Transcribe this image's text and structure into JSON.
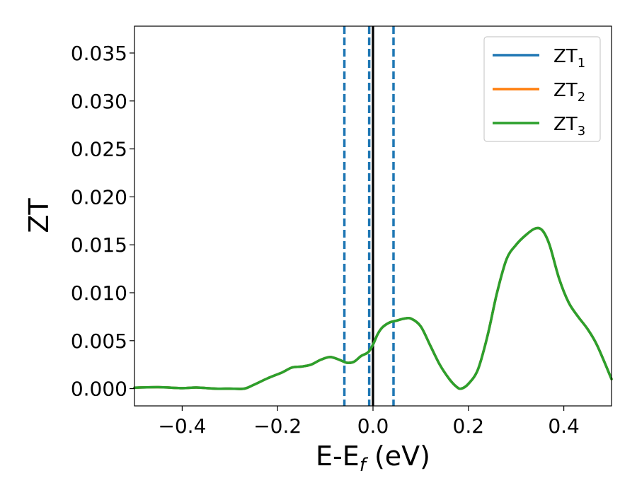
{
  "chart_data": {
    "type": "line",
    "xlabel_main": "E-E",
    "xlabel_sub": "f",
    "xlabel_unit": " (eV)",
    "ylabel": "ZT",
    "xlim": [
      -0.5,
      0.5
    ],
    "ylim": [
      -0.0018,
      0.0378
    ],
    "x_ticks": [
      -0.4,
      -0.2,
      0.0,
      0.2,
      0.4
    ],
    "x_tick_labels": [
      "−0.4",
      "−0.2",
      "0.0",
      "0.2",
      "0.4"
    ],
    "y_ticks": [
      0.0,
      0.005,
      0.01,
      0.015,
      0.02,
      0.025,
      0.03,
      0.035
    ],
    "y_tick_labels": [
      "0.000",
      "0.005",
      "0.010",
      "0.015",
      "0.020",
      "0.025",
      "0.030",
      "0.035"
    ],
    "grid": false,
    "legend_position": "top-right",
    "legend": [
      {
        "base": "ZT",
        "sub": "1",
        "color": "#1f77b4"
      },
      {
        "base": "ZT",
        "sub": "2",
        "color": "#ff7f0e"
      },
      {
        "base": "ZT",
        "sub": "3",
        "color": "#2ca02c"
      }
    ],
    "vlines": [
      {
        "x": -0.06,
        "color": "#1f77b4",
        "style": "dashed"
      },
      {
        "x": -0.008,
        "color": "#1f77b4",
        "style": "dashed"
      },
      {
        "x": 0.043,
        "color": "#1f77b4",
        "style": "dashed"
      },
      {
        "x": 0.0,
        "color": "#000000",
        "style": "solid"
      }
    ],
    "series": [
      {
        "name": "ZT1",
        "color": "#1f77b4",
        "x": [
          -0.5,
          -0.45,
          -0.4,
          -0.37,
          -0.33,
          -0.3,
          -0.27,
          -0.25,
          -0.22,
          -0.19,
          -0.17,
          -0.15,
          -0.13,
          -0.11,
          -0.09,
          -0.07,
          -0.055,
          -0.04,
          -0.025,
          -0.01,
          0.0,
          0.01,
          0.02,
          0.035,
          0.05,
          0.065,
          0.08,
          0.1,
          0.12,
          0.14,
          0.16,
          0.175,
          0.185,
          0.2,
          0.22,
          0.24,
          0.26,
          0.28,
          0.3,
          0.32,
          0.34,
          0.355,
          0.37,
          0.39,
          0.41,
          0.43,
          0.45,
          0.47,
          0.5
        ],
        "values": [
          0.0001,
          0.00015,
          5e-05,
          0.00012,
          0.0,
          0.0,
          0.0,
          0.0004,
          0.0011,
          0.0017,
          0.0022,
          0.0023,
          0.0025,
          0.003,
          0.0033,
          0.003,
          0.0027,
          0.0028,
          0.0034,
          0.0038,
          0.0046,
          0.0057,
          0.0064,
          0.0069,
          0.0071,
          0.0073,
          0.0073,
          0.0065,
          0.0045,
          0.0025,
          0.001,
          0.0002,
          0.0,
          0.0005,
          0.002,
          0.0055,
          0.01,
          0.0135,
          0.015,
          0.016,
          0.0167,
          0.0165,
          0.015,
          0.0115,
          0.009,
          0.0075,
          0.0062,
          0.0045,
          0.001
        ]
      },
      {
        "name": "ZT2",
        "color": "#ff7f0e",
        "x": [
          -0.5,
          -0.45,
          -0.4,
          -0.37,
          -0.33,
          -0.3,
          -0.27,
          -0.25,
          -0.22,
          -0.19,
          -0.17,
          -0.15,
          -0.13,
          -0.11,
          -0.09,
          -0.07,
          -0.055,
          -0.04,
          -0.025,
          -0.01,
          0.0,
          0.01,
          0.02,
          0.035,
          0.05,
          0.065,
          0.08,
          0.1,
          0.12,
          0.14,
          0.16,
          0.175,
          0.185,
          0.2,
          0.22,
          0.24,
          0.26,
          0.28,
          0.3,
          0.32,
          0.34,
          0.355,
          0.37,
          0.39,
          0.41,
          0.43,
          0.45,
          0.47,
          0.5
        ],
        "values": [
          0.0001,
          0.00015,
          5e-05,
          0.00012,
          0.0,
          0.0,
          0.0,
          0.0004,
          0.0011,
          0.0017,
          0.0022,
          0.0023,
          0.0025,
          0.003,
          0.0033,
          0.003,
          0.0027,
          0.0028,
          0.0034,
          0.0038,
          0.0046,
          0.0057,
          0.0064,
          0.0069,
          0.0071,
          0.0073,
          0.0073,
          0.0065,
          0.0045,
          0.0025,
          0.001,
          0.0002,
          0.0,
          0.0005,
          0.002,
          0.0055,
          0.01,
          0.0135,
          0.015,
          0.016,
          0.0167,
          0.0165,
          0.015,
          0.0115,
          0.009,
          0.0075,
          0.0062,
          0.0045,
          0.001
        ]
      },
      {
        "name": "ZT3",
        "color": "#2ca02c",
        "x": [
          -0.5,
          -0.45,
          -0.4,
          -0.37,
          -0.33,
          -0.3,
          -0.27,
          -0.25,
          -0.22,
          -0.19,
          -0.17,
          -0.15,
          -0.13,
          -0.11,
          -0.09,
          -0.07,
          -0.055,
          -0.04,
          -0.025,
          -0.01,
          0.0,
          0.01,
          0.02,
          0.035,
          0.05,
          0.065,
          0.08,
          0.1,
          0.12,
          0.14,
          0.16,
          0.175,
          0.185,
          0.2,
          0.22,
          0.24,
          0.26,
          0.28,
          0.3,
          0.32,
          0.34,
          0.355,
          0.37,
          0.39,
          0.41,
          0.43,
          0.45,
          0.47,
          0.5
        ],
        "values": [
          0.0001,
          0.00015,
          5e-05,
          0.00012,
          0.0,
          0.0,
          0.0,
          0.0004,
          0.0011,
          0.0017,
          0.0022,
          0.0023,
          0.0025,
          0.003,
          0.0033,
          0.003,
          0.0027,
          0.0028,
          0.0034,
          0.0038,
          0.0046,
          0.0057,
          0.0064,
          0.0069,
          0.0071,
          0.0073,
          0.0073,
          0.0065,
          0.0045,
          0.0025,
          0.001,
          0.0002,
          0.0,
          0.0005,
          0.002,
          0.0055,
          0.01,
          0.0135,
          0.015,
          0.016,
          0.0167,
          0.0165,
          0.015,
          0.0115,
          0.009,
          0.0075,
          0.0062,
          0.0045,
          0.001
        ]
      }
    ]
  }
}
